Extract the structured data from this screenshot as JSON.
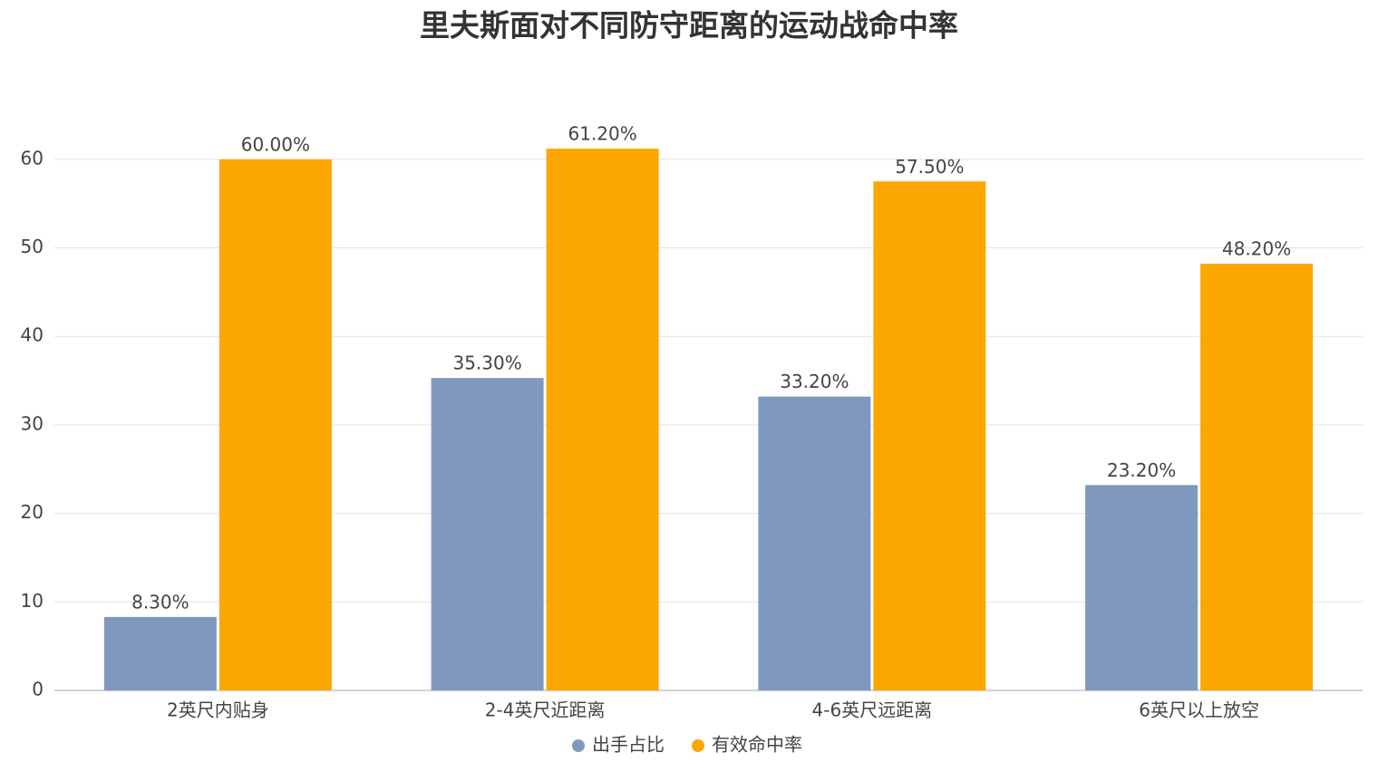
{
  "chart_data": {
    "type": "bar",
    "title": "里夫斯面对不同防守距离的运动战命中率",
    "categories": [
      "2英尺内贴身",
      "2-4英尺近距离",
      "4-6英尺远距离",
      "6英尺以上放空"
    ],
    "series": [
      {
        "name": "出手占比",
        "color": "#7f99be",
        "values": [
          8.3,
          35.3,
          33.2,
          23.2
        ],
        "value_labels": [
          "8.30%",
          "35.30%",
          "33.20%",
          "23.20%"
        ]
      },
      {
        "name": "有效命中率",
        "color": "#fca601",
        "values": [
          60.0,
          61.2,
          57.5,
          48.2
        ],
        "value_labels": [
          "60.00%",
          "61.20%",
          "57.50%",
          "48.20%"
        ]
      }
    ],
    "ylim": [
      0,
      65
    ],
    "yticks": [
      0,
      10,
      20,
      30,
      40,
      50,
      60
    ],
    "grid": true,
    "legend": "bottom"
  }
}
